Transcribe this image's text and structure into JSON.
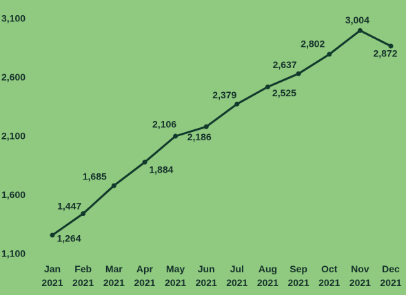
{
  "chart_data": {
    "type": "line",
    "categories": [
      "Jan 2021",
      "Feb 2021",
      "Mar 2021",
      "Apr 2021",
      "May 2021",
      "Jun 2021",
      "Jul 2021",
      "Aug 2021",
      "Sep 2021",
      "Oct 2021",
      "Nov 2021",
      "Dec 2021"
    ],
    "series": [
      {
        "name": "Value",
        "color": "#123a2c",
        "values": [
          1264,
          1447,
          1685,
          1884,
          2106,
          2186,
          2379,
          2525,
          2637,
          2802,
          3004,
          2872
        ],
        "value_labels": [
          "1,264",
          "1,447",
          "1,685",
          "1,884",
          "2,106",
          "2,186",
          "2,379",
          "2,525",
          "2,637",
          "2,802",
          "3,004",
          "2,872"
        ]
      }
    ],
    "ylim": [
      1100,
      3100
    ],
    "yticks": [
      {
        "value": 1100,
        "label": "1,100"
      },
      {
        "value": 1600,
        "label": "1,600"
      },
      {
        "value": 2100,
        "label": "2,100"
      },
      {
        "value": 2600,
        "label": "2,600"
      },
      {
        "value": 3100,
        "label": "3,100"
      }
    ],
    "grid": false
  }
}
